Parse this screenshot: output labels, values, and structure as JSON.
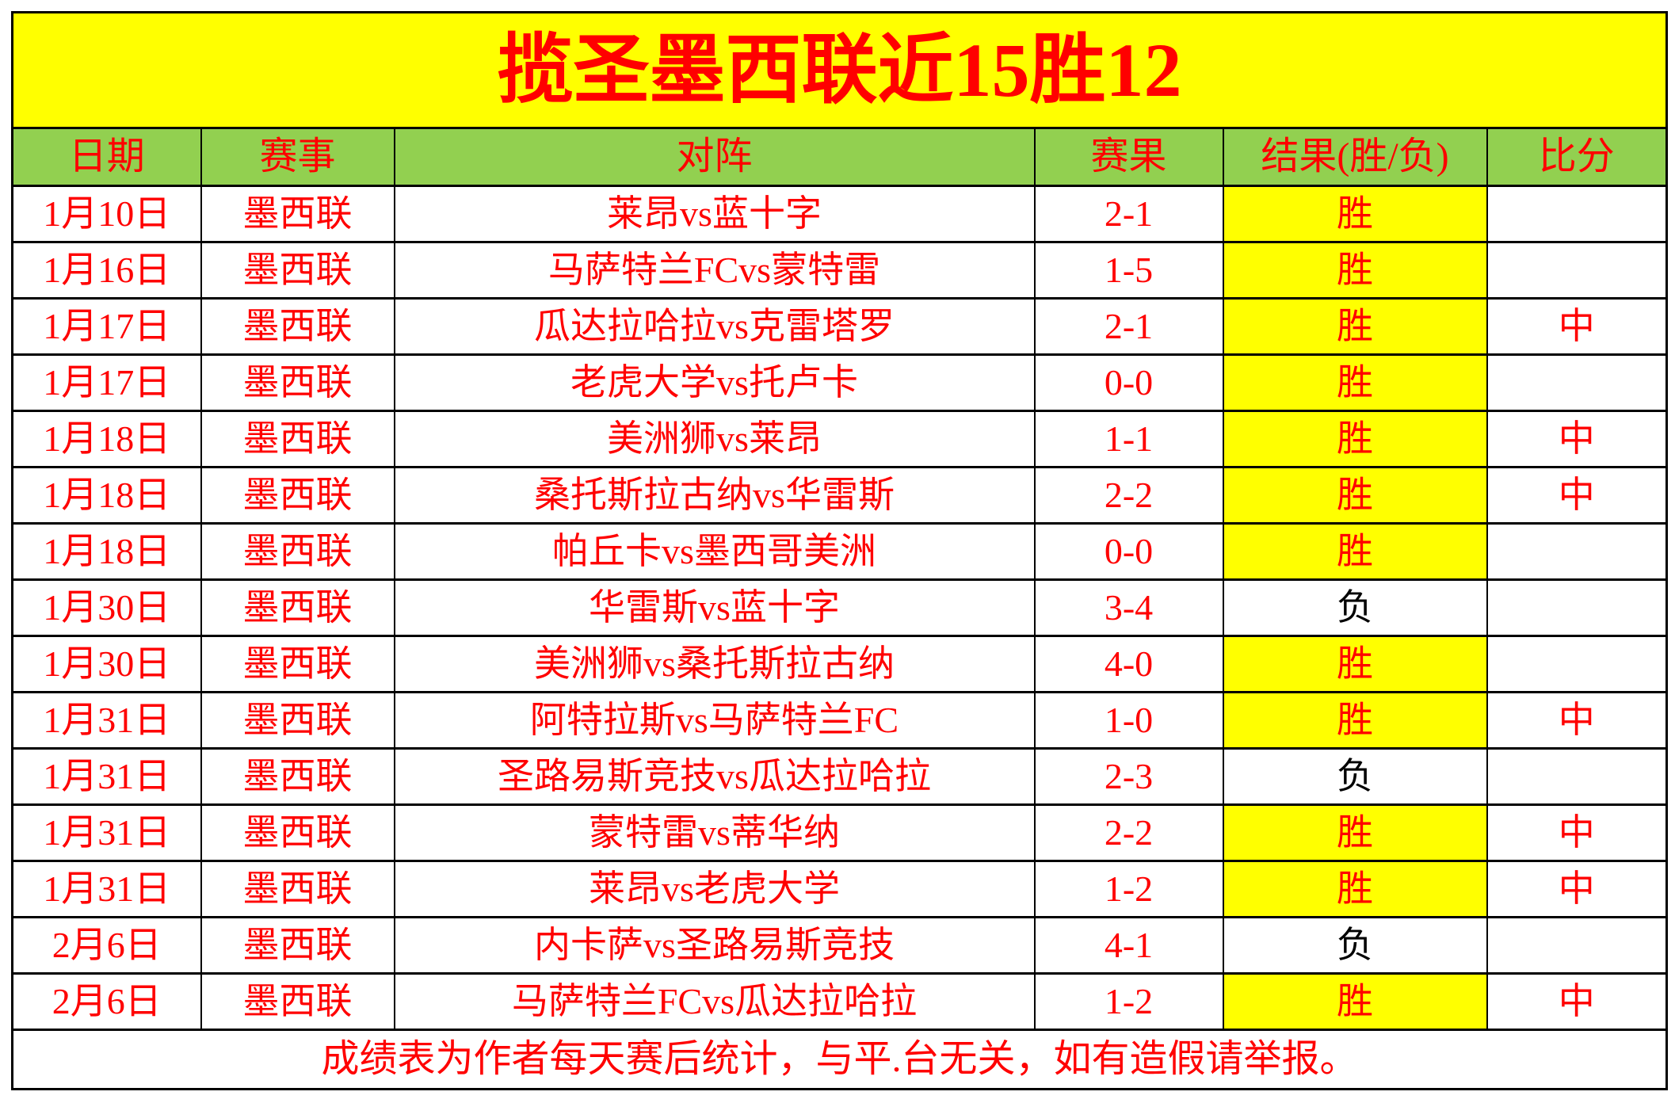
{
  "colors": {
    "title_background": "#ffff00",
    "header_background": "#92d050",
    "win_cell_background": "#ffff00",
    "main_text_red": "#ff0000",
    "loss_text_black": "#000000",
    "border_black": "#000000"
  },
  "chart_data": {
    "type": "table",
    "title": "揽圣墨西联近15胜12",
    "columns": [
      "日期",
      "赛事",
      "对阵",
      "赛果",
      "结果(胜/负)",
      "比分"
    ],
    "rows": [
      [
        "1月10日",
        "墨西联",
        "莱昂vs蓝十字",
        "2-1",
        "胜",
        ""
      ],
      [
        "1月16日",
        "墨西联",
        "马萨特兰FCvs蒙特雷",
        "1-5",
        "胜",
        ""
      ],
      [
        "1月17日",
        "墨西联",
        "瓜达拉哈拉vs克雷塔罗",
        "2-1",
        "胜",
        "中"
      ],
      [
        "1月17日",
        "墨西联",
        "老虎大学vs托卢卡",
        "0-0",
        "胜",
        ""
      ],
      [
        "1月18日",
        "墨西联",
        "美洲狮vs莱昂",
        "1-1",
        "胜",
        "中"
      ],
      [
        "1月18日",
        "墨西联",
        "桑托斯拉古纳vs华雷斯",
        "2-2",
        "胜",
        "中"
      ],
      [
        "1月18日",
        "墨西联",
        "帕丘卡vs墨西哥美洲",
        "0-0",
        "胜",
        ""
      ],
      [
        "1月30日",
        "墨西联",
        "华雷斯vs蓝十字",
        "3-4",
        "负",
        ""
      ],
      [
        "1月30日",
        "墨西联",
        "美洲狮vs桑托斯拉古纳",
        "4-0",
        "胜",
        ""
      ],
      [
        "1月31日",
        "墨西联",
        "阿特拉斯vs马萨特兰FC",
        "1-0",
        "胜",
        "中"
      ],
      [
        "1月31日",
        "墨西联",
        "圣路易斯竞技vs瓜达拉哈拉",
        "2-3",
        "负",
        ""
      ],
      [
        "1月31日",
        "墨西联",
        "蒙特雷vs蒂华纳",
        "2-2",
        "胜",
        "中"
      ],
      [
        "1月31日",
        "墨西联",
        "莱昂vs老虎大学",
        "1-2",
        "胜",
        "中"
      ],
      [
        "2月6日",
        "墨西联",
        "内卡萨vs圣路易斯竞技",
        "4-1",
        "负",
        ""
      ],
      [
        "2月6日",
        "墨西联",
        "马萨特兰FCvs瓜达拉哈拉",
        "1-2",
        "胜",
        "中"
      ]
    ],
    "footer": "成绩表为作者每天赛后统计，与平.台无关，如有造假请举报。",
    "win_value": "胜",
    "loss_value": "负",
    "layout_hints": "title banner yellow, header green, win cells yellow highlight, loss cells white with black text"
  }
}
